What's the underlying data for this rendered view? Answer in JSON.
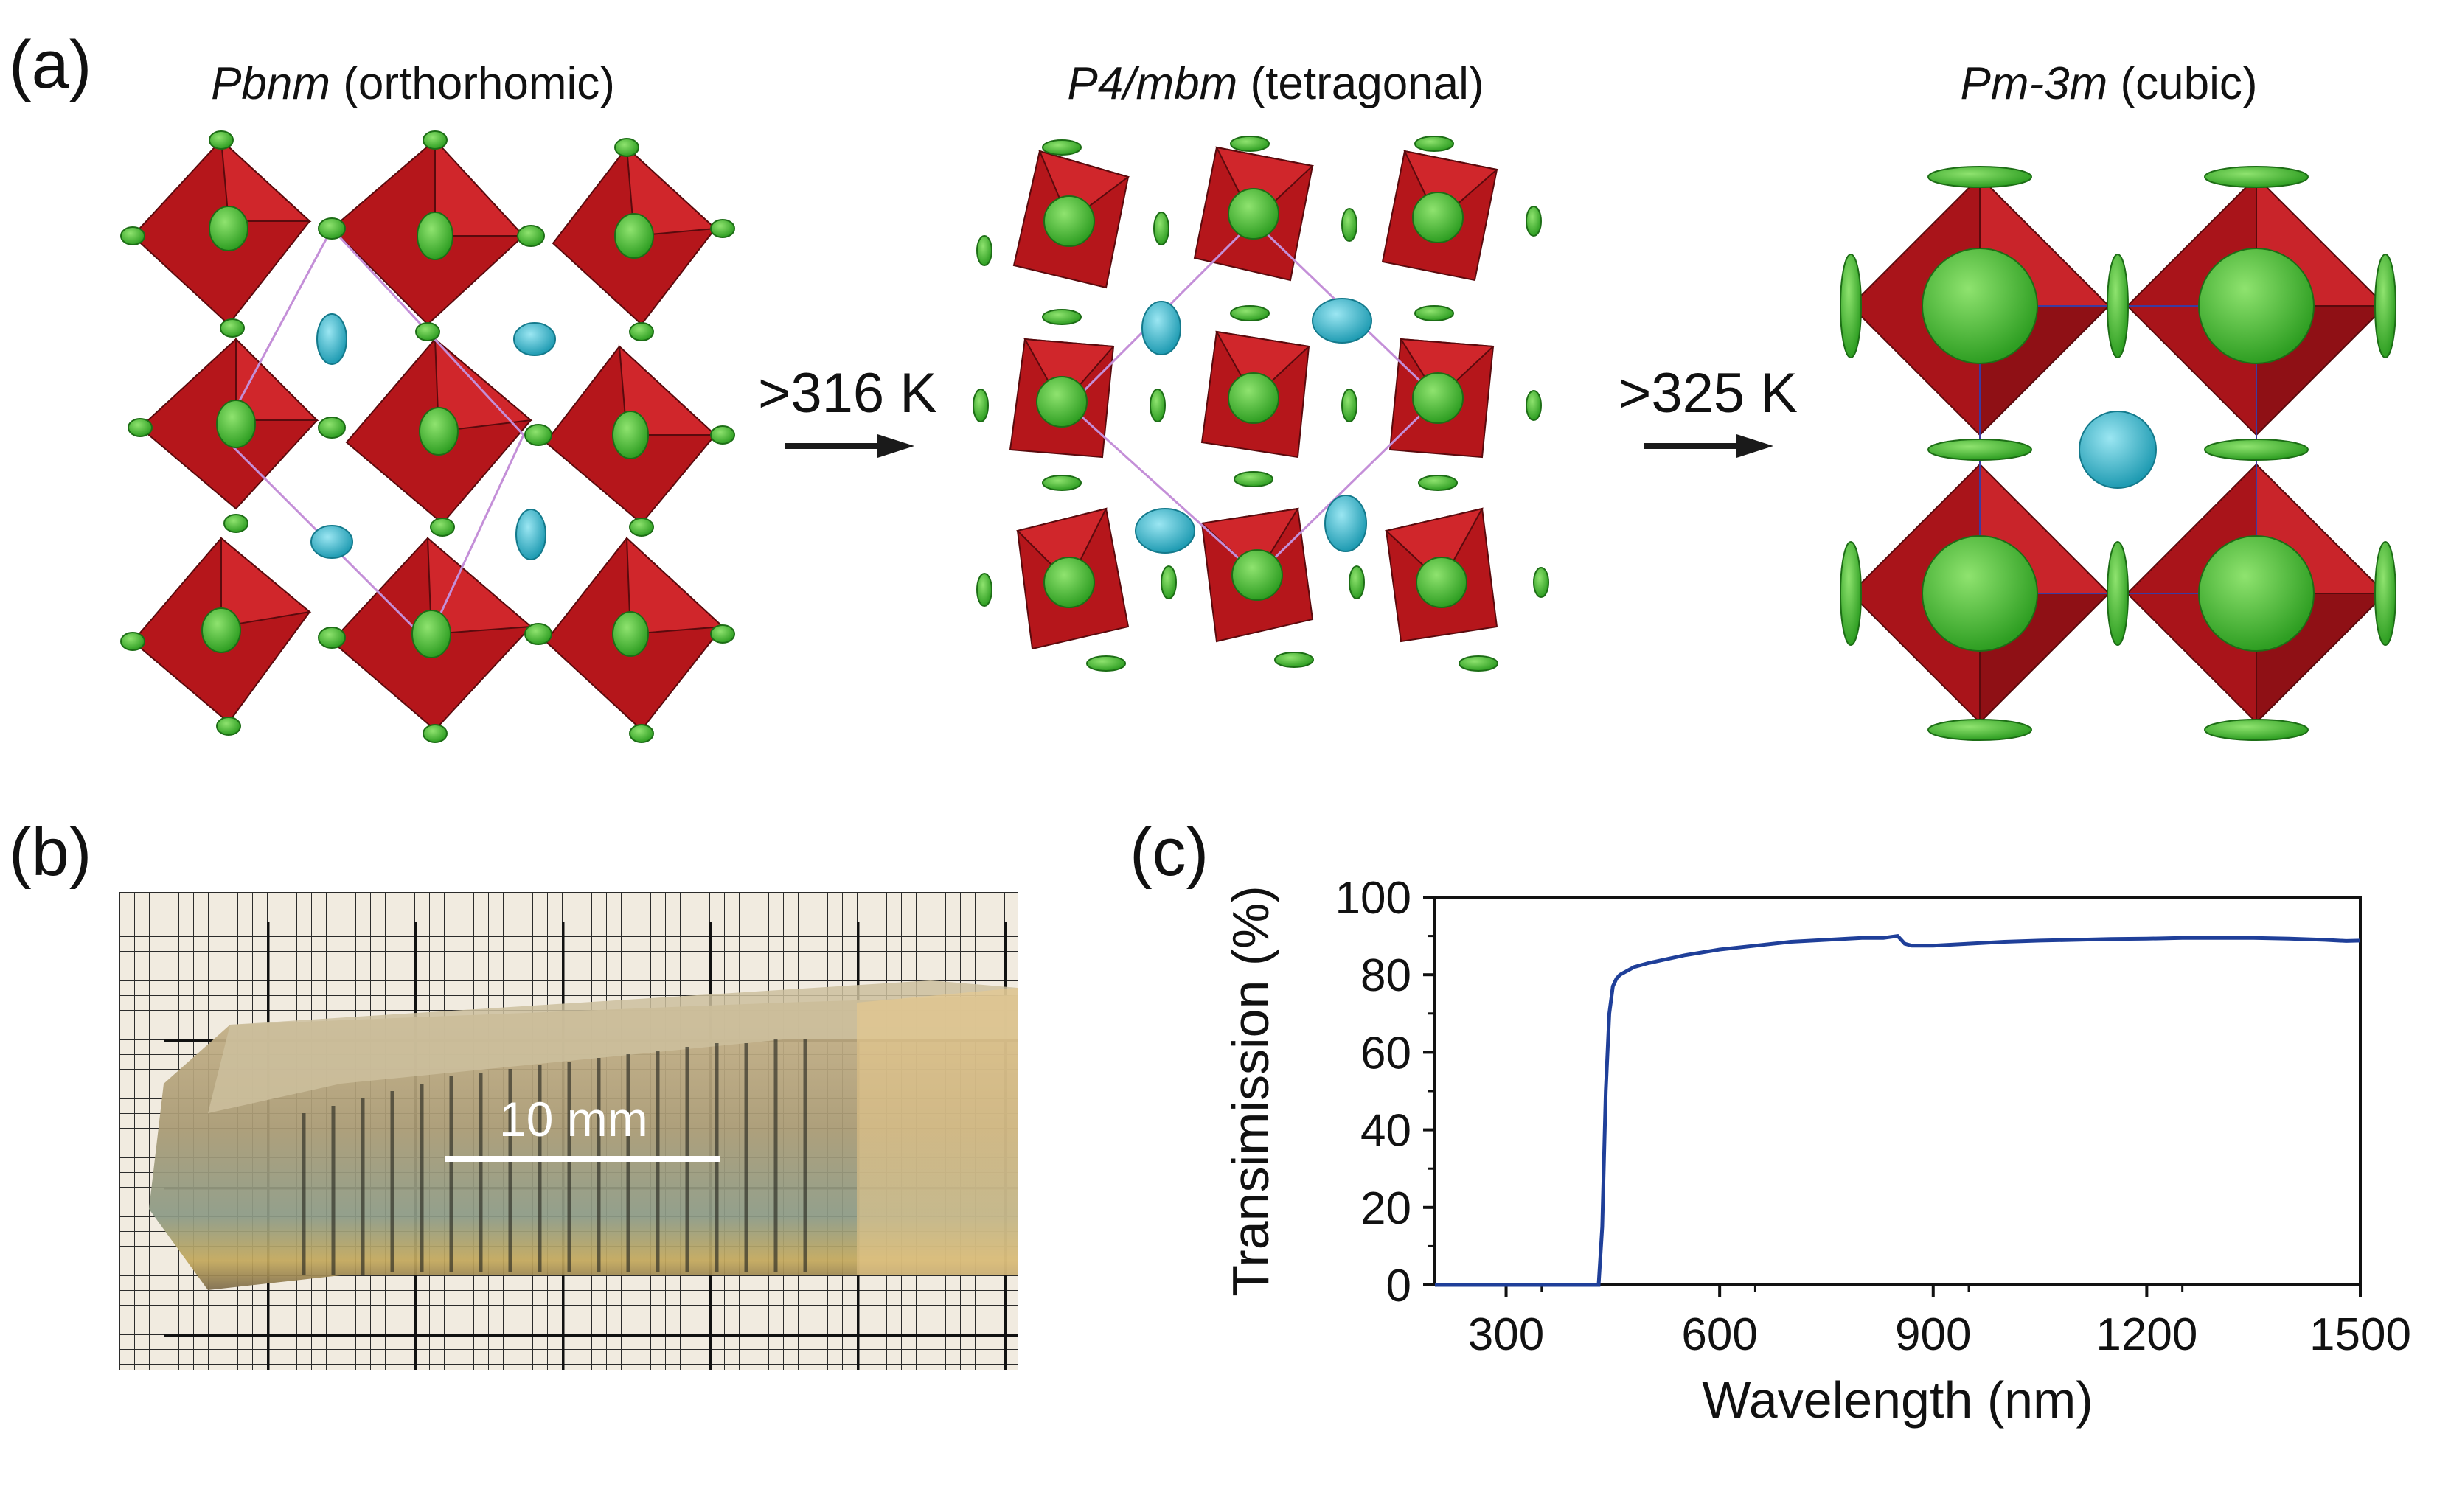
{
  "figure": {
    "panel_a": {
      "label": "(a)",
      "phases": [
        {
          "symmetry": "Pbnm",
          "system": "(orthorhomic)"
        },
        {
          "symmetry": "P4/mbm",
          "system": "(tetragonal)"
        },
        {
          "symmetry": "Pm-3m",
          "system": "(cubic)"
        }
      ],
      "transitions": [
        {
          "label": ">316 K"
        },
        {
          "label": ">325 K"
        }
      ]
    },
    "panel_b": {
      "label": "(b)",
      "scale_bar_label": "10 mm"
    },
    "panel_c": {
      "label": "(c)"
    }
  },
  "colors": {
    "octahedron": "#b5161b",
    "halide": "#3cbb2c",
    "cation": "#39b5c8",
    "line": "#1f3f99"
  },
  "chart_data": {
    "type": "line",
    "title": "",
    "xlabel": "Wavelength (nm)",
    "ylabel": "Transimission (%)",
    "xlim": [
      200,
      1500
    ],
    "ylim": [
      0,
      100
    ],
    "xticks": [
      300,
      600,
      900,
      1200,
      1500
    ],
    "yticks": [
      0,
      20,
      40,
      60,
      80,
      100
    ],
    "grid": false,
    "series": [
      {
        "name": "Transmission",
        "x": [
          200,
          430,
          435,
          440,
          445,
          450,
          455,
          460,
          470,
          480,
          500,
          550,
          600,
          650,
          700,
          750,
          800,
          830,
          850,
          860,
          870,
          900,
          950,
          1000,
          1050,
          1100,
          1150,
          1200,
          1250,
          1300,
          1350,
          1400,
          1450,
          1480,
          1500
        ],
        "y": [
          0,
          0,
          15,
          50,
          70,
          77,
          79,
          80,
          81,
          82,
          83,
          85,
          86.5,
          87.5,
          88.5,
          89,
          89.5,
          89.5,
          90,
          88,
          87.5,
          87.5,
          88,
          88.5,
          88.8,
          89,
          89.2,
          89.3,
          89.5,
          89.5,
          89.5,
          89.3,
          89,
          88.7,
          88.8
        ]
      }
    ]
  }
}
